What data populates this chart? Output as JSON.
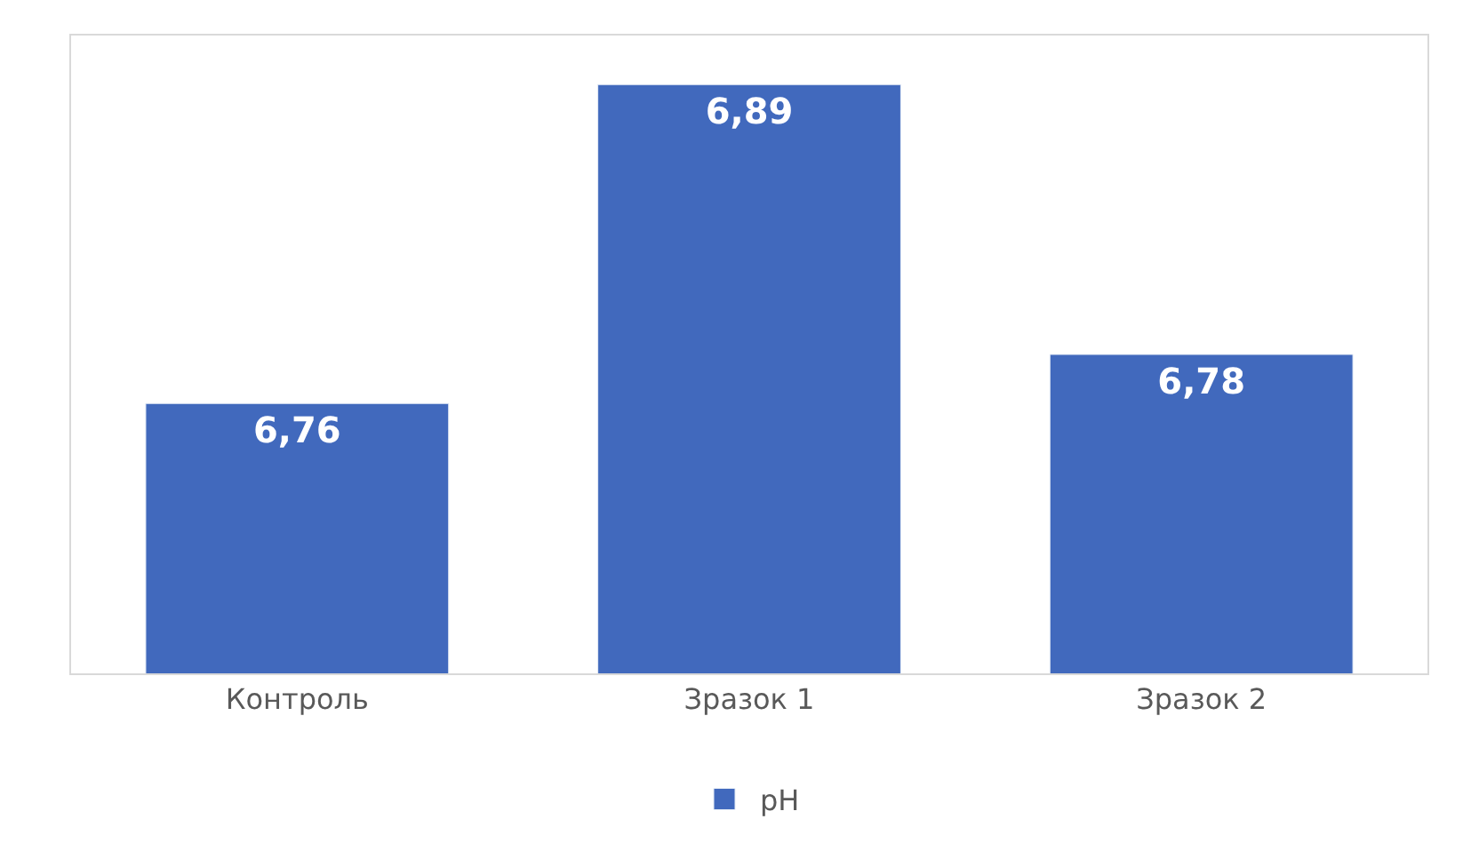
{
  "chart_data": {
    "type": "bar",
    "categories": [
      "Контроль",
      "Зразок 1",
      "Зразок 2"
    ],
    "series": [
      {
        "name": "pH",
        "color": "#4169bd",
        "values": [
          6.76,
          6.89,
          6.78
        ],
        "value_labels": [
          "6,76",
          "6,89",
          "6,78"
        ]
      }
    ],
    "ylim": [
      6.65,
      6.91
    ],
    "tick_labels": "x",
    "legend": "bottom"
  }
}
